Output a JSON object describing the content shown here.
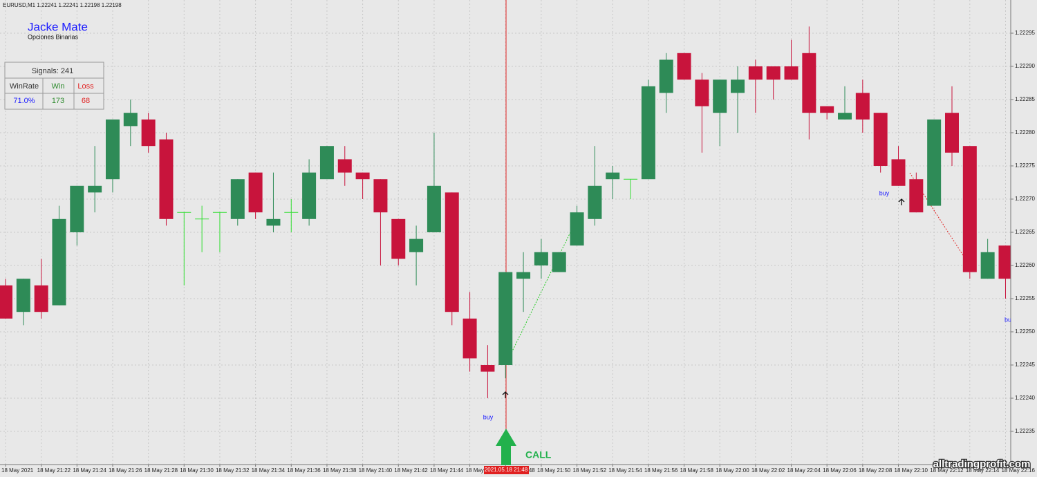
{
  "chart_data": {
    "type": "candlestick",
    "title": "EURUSD,M1  1.22241 1.22241 1.22198 1.22198",
    "categories": [
      "18 May 2021",
      null,
      "18 May 21:22",
      null,
      "18 May 21:24",
      null,
      "18 May 21:26",
      null,
      "18 May 21:28",
      null,
      "18 May 21:30",
      null,
      "18 May 21:32",
      null,
      "18 May 21:34",
      null,
      "18 May 21:36",
      null,
      "18 May 21:38",
      null,
      "18 May 21:40",
      null,
      "18 May 21:42",
      null,
      "18 May 21:44",
      null,
      "18 May 21:46",
      null,
      "18 May 21:48",
      null,
      "18 May 21:50",
      null,
      "18 May 21:52",
      null,
      "18 May 21:54",
      null,
      "18 May 21:56",
      null,
      "18 May 21:58",
      null,
      "18 May 22:00",
      null,
      "18 May 22:02",
      null,
      "18 May 22:04",
      null,
      "18 May 22:06",
      null,
      "18 May 22:08",
      null,
      "18 May 22:10",
      null,
      "18 May 22:12",
      null,
      "18 May 22:14",
      null,
      "18 May 22:16"
    ],
    "open": [
      1.22257,
      1.22253,
      1.22257,
      1.22254,
      1.22265,
      1.22271,
      1.22273,
      1.22281,
      1.22282,
      1.22279,
      1.22268,
      1.22267,
      1.22268,
      1.22267,
      1.22274,
      1.22266,
      1.22268,
      1.22267,
      1.22273,
      1.22276,
      1.22274,
      1.22273,
      1.22267,
      1.22262,
      1.22265,
      1.22271,
      1.22252,
      1.22245,
      1.22245,
      1.22258,
      1.2226,
      1.22259,
      1.22263,
      1.22267,
      1.22273,
      1.22273,
      1.22273,
      1.22286,
      1.22292,
      1.22288,
      1.22283,
      1.22286,
      1.2229,
      1.2229,
      1.2229,
      1.22292,
      1.22284,
      1.22282,
      1.22286,
      1.22283,
      1.22276,
      1.22273,
      1.22269,
      1.22283,
      1.22278,
      1.22258,
      1.22263
    ],
    "high": [
      1.22258,
      1.22258,
      1.22261,
      1.22269,
      1.22272,
      1.22278,
      1.22282,
      1.22285,
      1.22283,
      1.2228,
      1.22268,
      1.22269,
      1.22268,
      1.22273,
      1.22274,
      1.22274,
      1.2227,
      1.22276,
      1.22278,
      1.22278,
      1.22274,
      1.22273,
      1.22267,
      1.22266,
      1.2228,
      1.22271,
      1.22256,
      1.22248,
      1.22259,
      1.22262,
      1.22264,
      1.22262,
      1.22269,
      1.22278,
      1.22275,
      1.22273,
      1.22288,
      1.22292,
      1.22292,
      1.22289,
      1.22288,
      1.2229,
      1.22291,
      1.2229,
      1.22294,
      1.22296,
      1.22284,
      1.22287,
      1.22288,
      1.22283,
      1.22278,
      1.22274,
      1.22282,
      1.22287,
      1.22278,
      1.22264,
      1.22263
    ],
    "low": [
      1.22252,
      1.22251,
      1.22252,
      1.22254,
      1.22263,
      1.22268,
      1.22271,
      1.22278,
      1.22277,
      1.22266,
      1.22257,
      1.22262,
      1.22262,
      1.22266,
      1.22267,
      1.22265,
      1.22265,
      1.22266,
      1.22273,
      1.22272,
      1.2227,
      1.2226,
      1.2226,
      1.22257,
      1.22265,
      1.22251,
      1.22244,
      1.2224,
      1.22243,
      1.22253,
      1.22258,
      1.22259,
      1.22263,
      1.22266,
      1.2227,
      1.2227,
      1.22273,
      1.22283,
      1.22288,
      1.22277,
      1.22278,
      1.2228,
      1.22283,
      1.22285,
      1.22288,
      1.22279,
      1.22282,
      1.22282,
      1.2228,
      1.22274,
      1.22272,
      1.22268,
      1.22269,
      1.22275,
      1.22258,
      1.22258,
      1.22255
    ],
    "close": [
      1.22252,
      1.22258,
      1.22253,
      1.22267,
      1.22272,
      1.22272,
      1.22282,
      1.22283,
      1.22278,
      1.22267,
      1.22268,
      1.22267,
      1.22268,
      1.22273,
      1.22268,
      1.22267,
      1.22268,
      1.22274,
      1.22278,
      1.22274,
      1.22273,
      1.22268,
      1.22261,
      1.22264,
      1.22272,
      1.22253,
      1.22246,
      1.22244,
      1.22259,
      1.22259,
      1.22262,
      1.22262,
      1.22268,
      1.22272,
      1.22274,
      1.22273,
      1.22287,
      1.22291,
      1.22288,
      1.22284,
      1.22288,
      1.22288,
      1.22288,
      1.22288,
      1.22288,
      1.22283,
      1.22283,
      1.22283,
      1.22282,
      1.22275,
      1.22272,
      1.22268,
      1.22282,
      1.22277,
      1.22259,
      1.22262,
      1.22258
    ],
    "up_color": "#2e8b57",
    "down_color": "#c8143c",
    "doji_color": "#33dd33",
    "ylim": [
      1.2223,
      1.223
    ],
    "yticks": [
      1.22235,
      {
        "value": 1.2224,
        "label": "1.22240"
      },
      1.22245,
      {
        "value": 1.2225,
        "label": "1.22250"
      },
      1.22255,
      {
        "value": 1.2226,
        "label": "1.22260"
      },
      1.22265,
      {
        "value": 1.2227,
        "label": "1.22270"
      },
      1.22275,
      {
        "value": 1.2228,
        "label": "1.22280"
      },
      1.22285,
      {
        "value": 1.2229,
        "label": "1.22290"
      },
      1.22295
    ],
    "grid": true,
    "crosshair_label": "2021.05.18 21:48",
    "annotations": [
      "buy",
      "buy",
      "buy"
    ],
    "signal": "CALL"
  },
  "indicator": {
    "name": "Jacke Mate",
    "subtitle": "Opciones Binarias",
    "table": {
      "title": "Signals: 241",
      "header": [
        "WinRate",
        "Win",
        "Loss"
      ],
      "row": [
        "71.0%",
        "173",
        "68"
      ]
    }
  },
  "watermark": "alltradingprofit.com"
}
